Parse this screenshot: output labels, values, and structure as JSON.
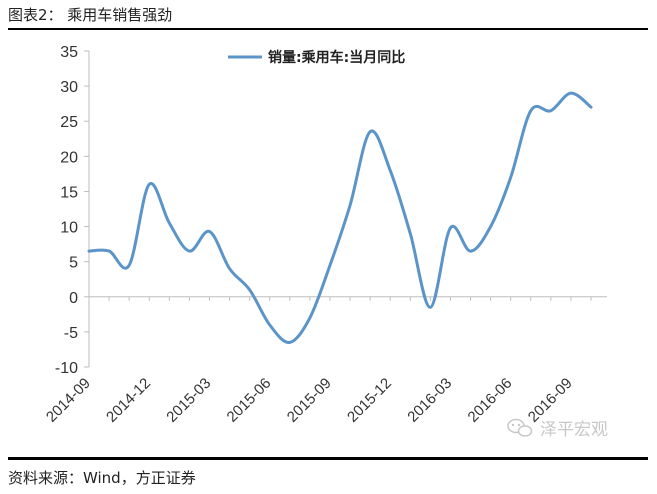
{
  "caption": "图表2： 乘用车销售强劲",
  "source": "资料来源：Wind，方正证券",
  "watermark": "泽平宏观",
  "colors": {
    "line": "#5b94c9",
    "axis": "#bdbdbd",
    "text": "#333333"
  },
  "chart_data": {
    "type": "line",
    "title": "",
    "xlabel": "",
    "ylabel": "",
    "ylim": [
      -10,
      35
    ],
    "yticks": [
      -10,
      -5,
      0,
      5,
      10,
      15,
      20,
      25,
      30,
      35
    ],
    "grid": false,
    "legend_position": "top-center",
    "x_tick_labels": [
      "2014-09",
      "2014-12",
      "2015-03",
      "2015-06",
      "2015-09",
      "2015-12",
      "2016-03",
      "2016-06",
      "2016-09"
    ],
    "x_tick_every": 3,
    "series": [
      {
        "name": "销量:乘用车:当月同比",
        "x": [
          "2014-09",
          "2014-10",
          "2014-11",
          "2014-12",
          "2015-01",
          "2015-02",
          "2015-03",
          "2015-04",
          "2015-05",
          "2015-06",
          "2015-07",
          "2015-08",
          "2015-09",
          "2015-10",
          "2015-11",
          "2015-12",
          "2016-01",
          "2016-02",
          "2016-03",
          "2016-04",
          "2016-05",
          "2016-06",
          "2016-07",
          "2016-08",
          "2016-09",
          "2016-10"
        ],
        "values": [
          6.5,
          6.5,
          4.5,
          16.0,
          10.5,
          6.5,
          9.3,
          4.0,
          1.0,
          -4.0,
          -6.5,
          -3.0,
          4.5,
          13.0,
          23.5,
          18.0,
          9.0,
          -1.5,
          9.8,
          6.5,
          10.0,
          17.0,
          26.5,
          26.5,
          29.0,
          27.0
        ]
      }
    ]
  }
}
